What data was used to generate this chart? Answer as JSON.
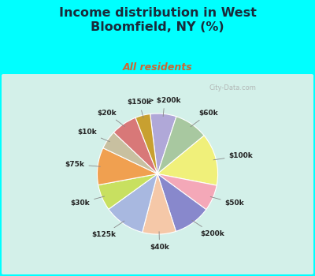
{
  "title": "Income distribution in West\nBloomfield, NY (%)",
  "subtitle": "All residents",
  "background_color": "#00FFFF",
  "labels": [
    "> $200k",
    "$60k",
    "$100k",
    "$50k",
    "$200k",
    "$40k",
    "$125k",
    "$30k",
    "$75k",
    "$10k",
    "$20k",
    "$150k"
  ],
  "sizes": [
    7,
    9,
    14,
    7,
    10,
    9,
    11,
    7,
    10,
    5,
    7,
    4
  ],
  "colors": [
    "#b0a8d8",
    "#a8c8a0",
    "#f0f07a",
    "#f4a8b8",
    "#8888cc",
    "#f5c8a8",
    "#a8b8e0",
    "#c8e060",
    "#f0a050",
    "#c8c0a0",
    "#d87878",
    "#c8a030"
  ],
  "label_color": "#222222",
  "title_color": "#1a2a3a",
  "subtitle_color": "#cc6633",
  "watermark": "City-Data.com",
  "chart_bg_color": "#e0f0e8"
}
